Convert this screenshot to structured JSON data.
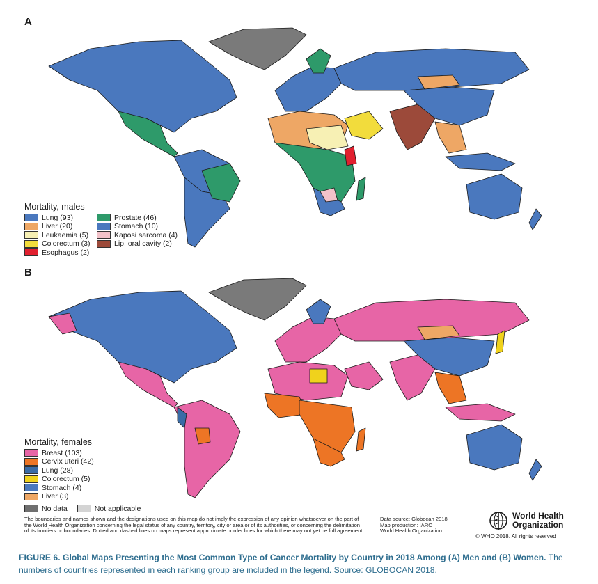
{
  "panel_a": {
    "letter": "A",
    "legend_title": "Mortality, males",
    "legend_items": [
      {
        "label": "Lung (93)",
        "color": "#4a78be"
      },
      {
        "label": "Prostate (46)",
        "color": "#2e9a6a"
      },
      {
        "label": "Liver (20)",
        "color": "#eea765"
      },
      {
        "label": "Stomach (10)",
        "color": "#4a78be"
      },
      {
        "label": "Leukaemia (5)",
        "color": "#f7f0b4"
      },
      {
        "label": "Kaposi sarcoma (4)",
        "color": "#f2c2c9"
      },
      {
        "label": "Colorectum (3)",
        "color": "#f2dc3c"
      },
      {
        "label": "Lip, oral cavity (2)",
        "color": "#9c4a3a"
      },
      {
        "label": "Esophagus (2)",
        "color": "#e1202f"
      }
    ]
  },
  "panel_b": {
    "letter": "B",
    "legend_title": "Mortality, females",
    "legend_items": [
      {
        "label": "Breast (103)",
        "color": "#e765a6"
      },
      {
        "label": "Cervix uteri (42)",
        "color": "#ed7525"
      },
      {
        "label": "Lung (28)",
        "color": "#3a6ba6"
      },
      {
        "label": "Colorectum (5)",
        "color": "#f0d21c"
      },
      {
        "label": "Stomach (4)",
        "color": "#4a78be"
      },
      {
        "label": "Liver (3)",
        "color": "#eea765"
      }
    ],
    "extra": [
      {
        "label": "No data",
        "color": "#6f6f6f"
      },
      {
        "label": "Not applicable",
        "color": "#d4d4d4"
      }
    ]
  },
  "disclaimer": "The boundaries and names shown and the designations used on this map do not imply the expression of any opinion whatsoever on the part of the World Health Organization concerning the legal status of any country, territory, city or area or of its authorities, or concerning the delimitation of its frontiers or boundaries. Dotted and dashed lines on maps represent approximate border lines for which there may not yet be full agreement.",
  "source": {
    "line1": "Data source: Globocan 2018",
    "line2": "Map production: IARC",
    "line3": "World Health Organization"
  },
  "logo": {
    "name_line1": "World Health",
    "name_line2": "Organization",
    "icon": "who-emblem-icon"
  },
  "copyright": "© WHO 2018. All rights reserved",
  "caption": {
    "bold": "FIGURE 6. Global Maps Presenting the Most Common Type of Cancer Mortality by Country in 2018 Among (A) Men and (B) Women.",
    "rest": " The numbers of countries represented in each ranking group are included in the legend. Source: GLOBOCAN 2018."
  },
  "colors": {
    "ocean": "#ffffff",
    "greenland": "#7a7a7a",
    "border": "#1a1a1a",
    "caption": "#2f6e8f"
  }
}
